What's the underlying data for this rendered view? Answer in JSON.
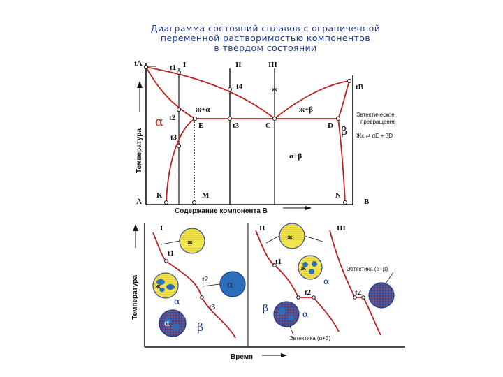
{
  "title": {
    "line1": "Диаграмма состояний сплавов с ограниченной",
    "line2": "переменной растворимостью компонентов",
    "line3": "в твердом состоянии"
  },
  "phase": {
    "labels": {
      "tA": "tA",
      "tB": "tB",
      "t1": "t1",
      "t2": "t2",
      "t3": "t3",
      "t4": "t4",
      "t3b": "t3",
      "I": "I",
      "II": "II",
      "III": "III",
      "liquid": "ж",
      "l_alpha": "ж+α",
      "l_beta": "ж+β",
      "alpha": "α",
      "beta": "β",
      "alpha_beta": "α+β",
      "E": "E",
      "C": "C",
      "D": "D",
      "A": "A",
      "B": "B",
      "K": "K",
      "M": "M",
      "N": "N"
    },
    "y_axis": "Температура",
    "x_axis": "Содержание компонента B",
    "eutectic_title_1": "Эвтектическое",
    "eutectic_title_2": "превращение",
    "eutectic_eq": "Жс ⇄ αЕ + βD"
  },
  "cooling": {
    "y_axis": "Температура",
    "x_axis": "Время",
    "labels": {
      "I": "I",
      "II": "II",
      "III": "III",
      "t1": "t1",
      "t2": "t2",
      "t3": "t3",
      "t1b": "t1",
      "t2b": "t2",
      "t2c": "t2",
      "liquid1": "ж",
      "liquid2": "ж",
      "liquid3": "ж",
      "liquid4": "ж",
      "alpha1": "α",
      "alpha2": "α",
      "alpha3": "α",
      "alpha4": "α",
      "alpha5": "α",
      "beta1": "β",
      "beta2": "β",
      "eutectic1": "Эвтектика (α+β)",
      "eutectic2": "Эвтектика (α+β)"
    }
  },
  "colors": {
    "curve": "#c0201f",
    "axis": "#111111",
    "liquid": "#f0e34a",
    "solid": "#2b6fb8",
    "grain": "#3a4f9a",
    "eutectic": "#c04a4a"
  }
}
